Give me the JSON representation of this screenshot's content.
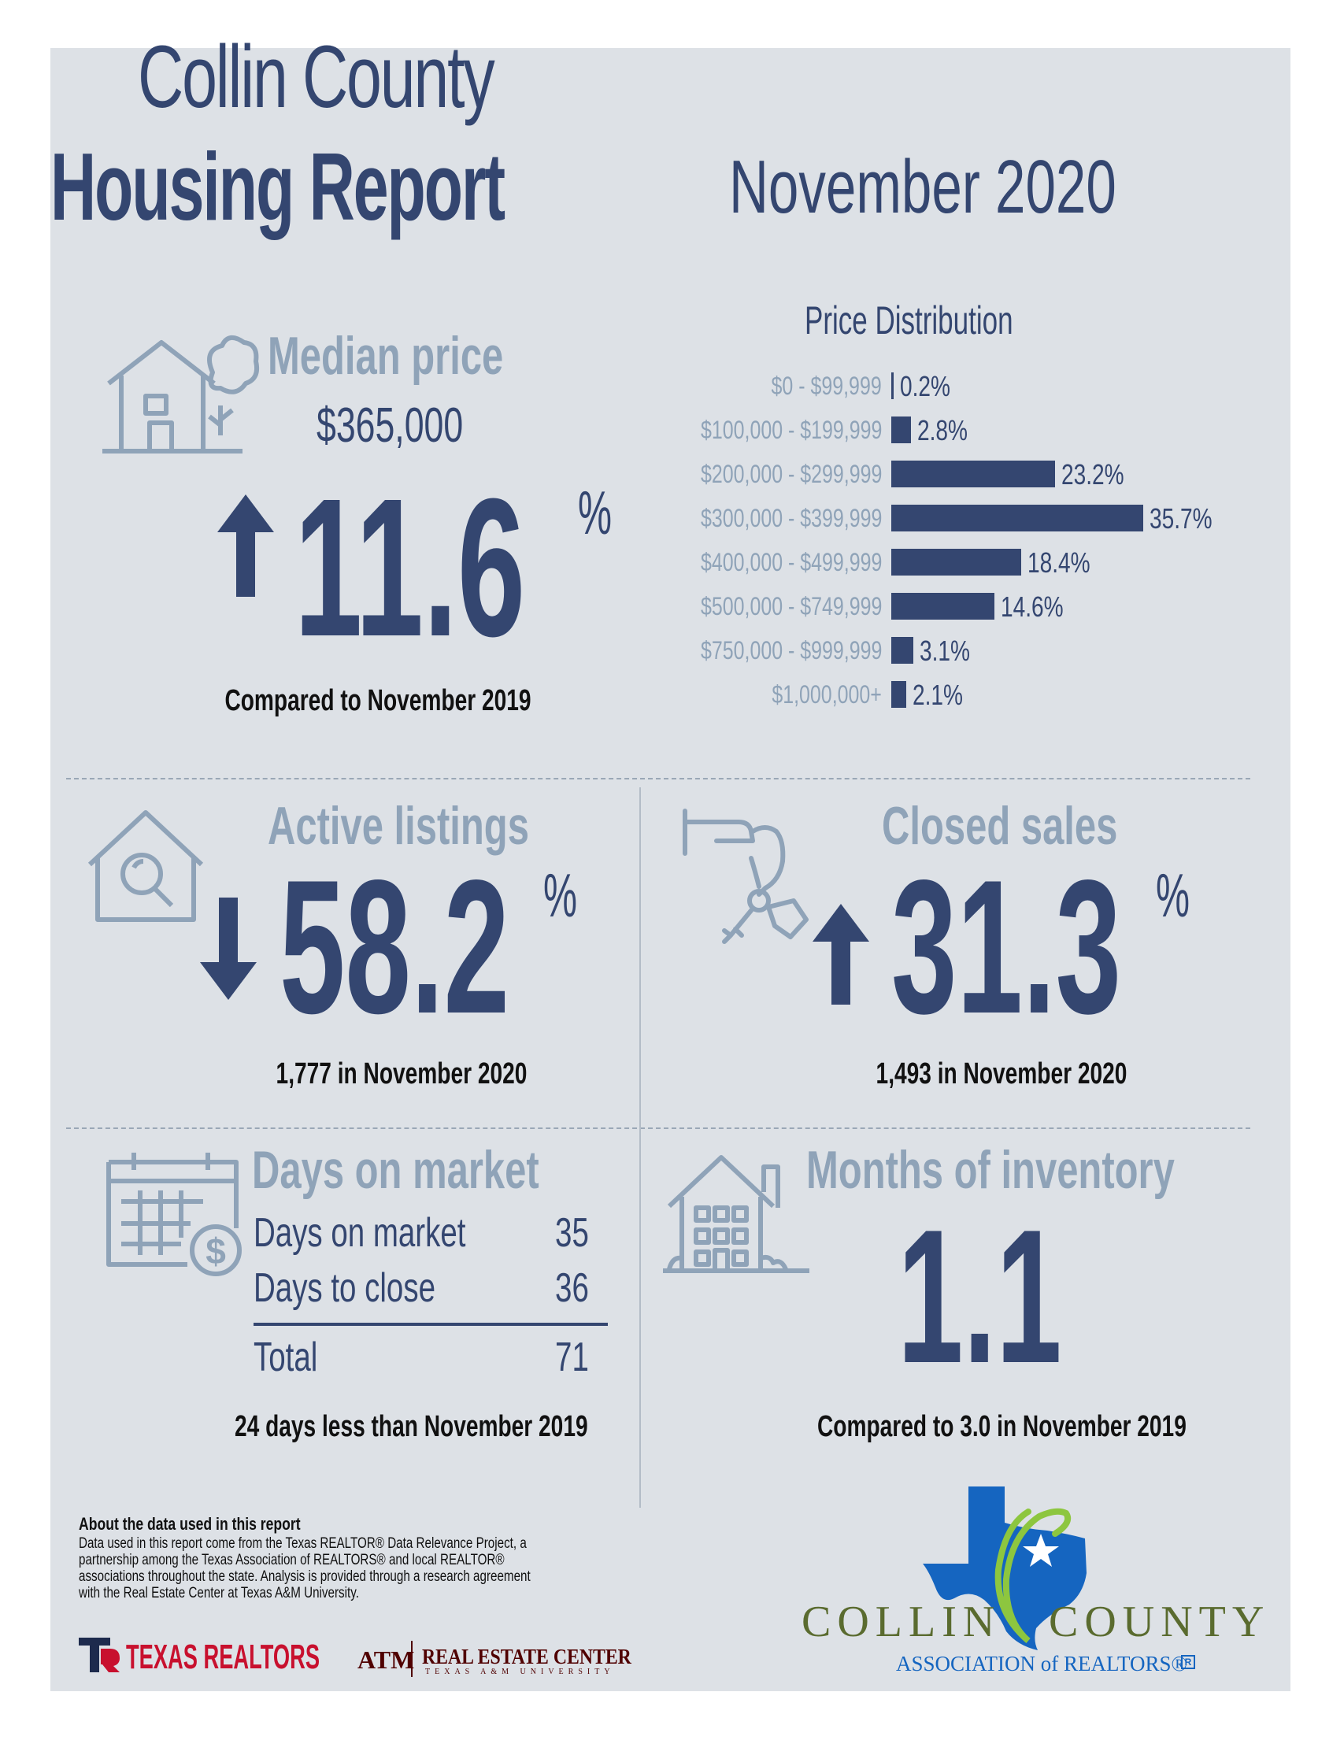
{
  "header": {
    "title_line1": "Collin County",
    "title_line2": "Housing Report",
    "month": "November 2020"
  },
  "median_price": {
    "title": "Median price",
    "value": "$365,000",
    "change": "11.6",
    "unit": "%",
    "direction": "up",
    "note": "Compared to November 2019"
  },
  "chart_data": {
    "type": "bar",
    "orientation": "horizontal",
    "title": "Price Distribution",
    "categories": [
      "$0 - $99,999",
      "$100,000 - $199,999",
      "$200,000 - $299,999",
      "$300,000 - $399,999",
      "$400,000 - $499,999",
      "$500,000 - $749,999",
      "$750,000 - $999,999",
      "$1,000,000+"
    ],
    "values": [
      0.2,
      2.8,
      23.2,
      35.7,
      18.4,
      14.6,
      3.1,
      2.1
    ],
    "value_labels": [
      "0.2%",
      "2.8%",
      "23.2%",
      "35.7%",
      "18.4%",
      "14.6%",
      "3.1%",
      "2.1%"
    ],
    "xlim": [
      0,
      35.7
    ],
    "grid": false,
    "bar_color": "#344670"
  },
  "active_listings": {
    "title": "Active listings",
    "change": "58.2",
    "unit": "%",
    "direction": "down",
    "note": "1,777 in November 2020"
  },
  "closed_sales": {
    "title": "Closed sales",
    "change": "31.3",
    "unit": "%",
    "direction": "up",
    "note": "1,493 in November 2020"
  },
  "days_on_market": {
    "title": "Days on market",
    "rows": [
      {
        "label": "Days on market",
        "value": "35"
      },
      {
        "label": "Days to close",
        "value": "36"
      }
    ],
    "total": {
      "label": "Total",
      "value": "71"
    },
    "note": "24 days less than November 2019"
  },
  "months_inventory": {
    "title": "Months of inventory",
    "value": "1.1",
    "note": "Compared to 3.0 in November 2019"
  },
  "about": {
    "heading": "About the data used in this report",
    "lines": [
      "Data used in this report come from the Texas REALTOR® Data Relevance Project, a",
      "partnership among the Texas Association of REALTORS® and local REALTOR®",
      "associations throughout the state. Analysis is provided through a research agreement",
      "with the Real Estate Center at Texas A&M University."
    ]
  },
  "logos": {
    "texas_realtors": "TEXAS REALTORS",
    "tamu": "ATM",
    "rec_line1": "REAL ESTATE CENTER",
    "rec_line2": "TEXAS A&M UNIVERSITY",
    "cc_word1": "COLLIN",
    "cc_word2": "COUNTY",
    "cc_assoc": "ASSOCIATION of REALTORS®"
  },
  "colors": {
    "navy": "#344670",
    "steel": "#8fa3b8",
    "panel": "#dde1e6",
    "texas_blue": "#1565c0",
    "lime": "#8dc63f",
    "olive": "#5a6b2f",
    "red": "#c8102e"
  },
  "icons": [
    "house-tree-icon",
    "house-search-icon",
    "hand-key-icon",
    "calendar-dollar-icon",
    "building-icon",
    "arrow-up-icon",
    "arrow-down-icon"
  ]
}
